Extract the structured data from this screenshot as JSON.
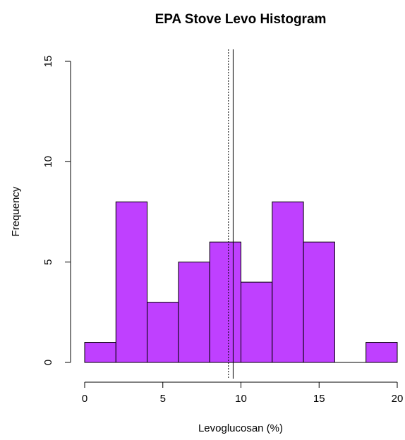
{
  "chart_data": {
    "type": "bar",
    "title": "EPA Stove Levo Histogram",
    "xlabel": "Levoglucosan (%)",
    "ylabel": "Frequency",
    "xlim": [
      0,
      20
    ],
    "ylim": [
      0,
      15
    ],
    "x_ticks": [
      0,
      5,
      10,
      15,
      20
    ],
    "y_ticks": [
      0,
      5,
      10,
      15
    ],
    "bin_edges": [
      0,
      2,
      4,
      6,
      8,
      10,
      12,
      14,
      16,
      18,
      20
    ],
    "values": [
      1,
      8,
      3,
      5,
      6,
      4,
      8,
      6,
      0,
      1
    ],
    "bar_color": "#BF40FF",
    "reference_lines": [
      {
        "style": "dotted",
        "x": 9.2
      },
      {
        "style": "solid",
        "x": 9.5
      }
    ],
    "grid": false,
    "legend": "none"
  }
}
